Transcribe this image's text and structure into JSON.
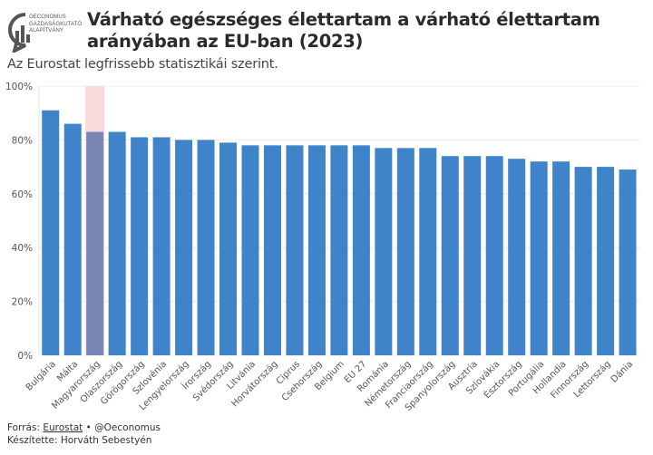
{
  "logo": {
    "lines": [
      "OECONOMUS",
      "GAZDASÁGKUTATÓ",
      "ALAPÍTVÁNY"
    ]
  },
  "header": {
    "title": "Várható egészséges élettartam a várható élettartam arányában az EU-ban (2023)",
    "subtitle": "Az Eurostat legfrissebb statisztikái szerint."
  },
  "footer": {
    "source_prefix": "Forrás: ",
    "source_link": "Eurostat",
    "source_suffix": " • @Oeconomus",
    "author": "Készítette: Horváth Sebestyén"
  },
  "colors": {
    "bar": "#3f84c9",
    "highlight_bar": "#7b86b8",
    "highlight_bg": "#f9d9dc",
    "grid": "#ececec",
    "text": "#555555"
  },
  "chart_data": {
    "type": "bar",
    "title": "Várható egészséges élettartam a várható élettartam arányában az EU-ban (2023)",
    "subtitle": "Az Eurostat legfrissebb statisztikái szerint.",
    "xlabel": "",
    "ylabel": "",
    "ylim": [
      0,
      100
    ],
    "yticks": [
      "0%",
      "20%",
      "40%",
      "60%",
      "80%",
      "100%"
    ],
    "ytick_values": [
      0,
      20,
      40,
      60,
      80,
      100
    ],
    "grid": true,
    "highlight": "Magyarország",
    "categories": [
      "Bulgária",
      "Málta",
      "Magyarország",
      "Olaszország",
      "Görögország",
      "Szlovénia",
      "Lengyelország",
      "Írország",
      "Svédország",
      "Litvánia",
      "Horvátország",
      "Ciprus",
      "Csehország",
      "Belgium",
      "EU 27",
      "Románia",
      "Németország",
      "Franciaország",
      "Spanyolország",
      "Ausztria",
      "Szlovákia",
      "Észtország",
      "Portugália",
      "Hollandia",
      "Finnország",
      "Lettország",
      "Dánia"
    ],
    "values": [
      91,
      86,
      83,
      83,
      81,
      81,
      80,
      80,
      79,
      78,
      78,
      78,
      78,
      78,
      78,
      77,
      77,
      77,
      74,
      74,
      74,
      73,
      72,
      72,
      70,
      70,
      69
    ]
  }
}
